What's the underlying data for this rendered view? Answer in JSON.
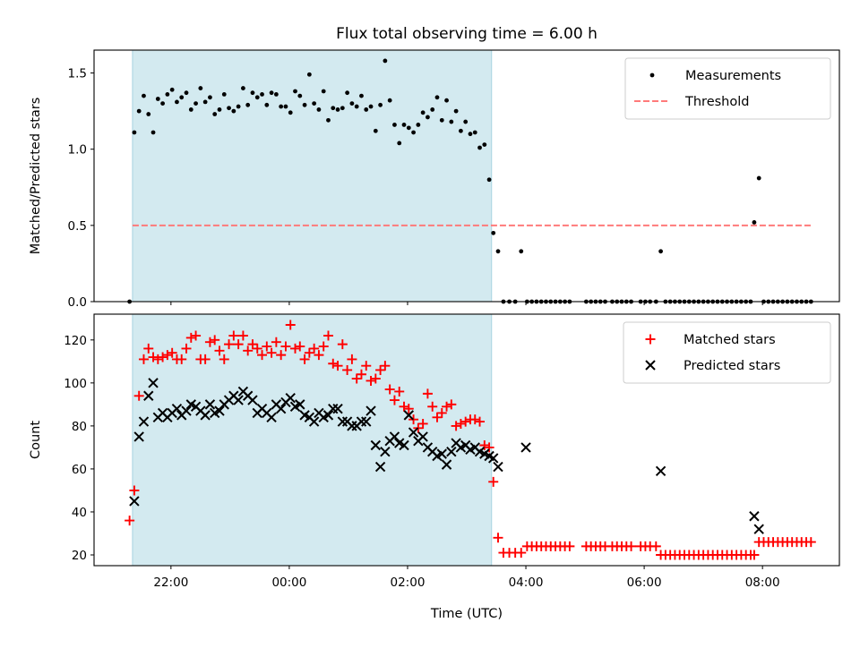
{
  "chart_data": {
    "title": "Flux total observing time = 6.00 h",
    "xlabel": "Time (UTC)",
    "x_unit": "hours since 00:00 UTC",
    "xlim": [
      -3.3,
      9.3
    ],
    "x_ticks": [
      {
        "v": -2,
        "label": "22:00"
      },
      {
        "v": 0,
        "label": "00:00"
      },
      {
        "v": 2,
        "label": "02:00"
      },
      {
        "v": 4,
        "label": "04:00"
      },
      {
        "v": 6,
        "label": "06:00"
      },
      {
        "v": 8,
        "label": "08:00"
      }
    ],
    "observing_window": {
      "start": -2.65,
      "end": 3.42,
      "color": "#d3eaf0"
    },
    "panels": [
      {
        "type": "scatter",
        "ylabel": "Matched/Predicted stars",
        "ylim": [
          0,
          1.65
        ],
        "y_ticks": [
          {
            "v": 0,
            "label": "0.0"
          },
          {
            "v": 0.5,
            "label": "0.5"
          },
          {
            "v": 1.0,
            "label": "1.0"
          },
          {
            "v": 1.5,
            "label": "1.5"
          }
        ],
        "threshold": {
          "value": 0.5,
          "x_start": -2.65,
          "x_end": 8.85,
          "color": "#ff7a7a"
        },
        "legend": {
          "position": "top-right",
          "entries": [
            {
              "label": "Measurements",
              "marker": "dot",
              "color": "#000000"
            },
            {
              "label": "Threshold",
              "marker": "dashed-line",
              "color": "#ff7a7a"
            }
          ]
        },
        "series": [
          {
            "name": "Measurements",
            "color": "#000000",
            "x": [
              -2.7,
              -2.62,
              -2.54,
              -2.46,
              -2.38,
              -2.3,
              -2.22,
              -2.14,
              -2.06,
              -1.98,
              -1.9,
              -1.82,
              -1.74,
              -1.66,
              -1.58,
              -1.5,
              -1.42,
              -1.34,
              -1.26,
              -1.18,
              -1.1,
              -1.02,
              -0.94,
              -0.86,
              -0.78,
              -0.7,
              -0.62,
              -0.54,
              -0.46,
              -0.38,
              -0.3,
              -0.22,
              -0.14,
              -0.06,
              0.02,
              0.1,
              0.18,
              0.26,
              0.34,
              0.42,
              0.5,
              0.58,
              0.66,
              0.74,
              0.82,
              0.9,
              0.98,
              1.06,
              1.14,
              1.22,
              1.3,
              1.38,
              1.46,
              1.54,
              1.62,
              1.7,
              1.78,
              1.86,
              1.94,
              2.02,
              2.1,
              2.18,
              2.26,
              2.34,
              2.42,
              2.5,
              2.58,
              2.66,
              2.74,
              2.82,
              2.9,
              2.98,
              3.06,
              3.14,
              3.22,
              3.3,
              3.38,
              3.45,
              3.53,
              3.62,
              3.72,
              3.82,
              3.92,
              4.02,
              4.1,
              4.18,
              4.26,
              4.34,
              4.42,
              4.5,
              4.58,
              4.66,
              4.74,
              5.02,
              5.1,
              5.18,
              5.26,
              5.34,
              5.46,
              5.54,
              5.62,
              5.7,
              5.78,
              5.94,
              6.02,
              6.1,
              6.2,
              6.28,
              6.36,
              6.44,
              6.52,
              6.6,
              6.68,
              6.76,
              6.84,
              6.92,
              7.0,
              7.08,
              7.16,
              7.24,
              7.32,
              7.4,
              7.48,
              7.56,
              7.64,
              7.72,
              7.8,
              7.86,
              7.94,
              8.02,
              8.1,
              8.18,
              8.26,
              8.34,
              8.42,
              8.5,
              8.58,
              8.66,
              8.74,
              8.82
            ],
            "y": [
              0.0,
              1.11,
              1.25,
              1.35,
              1.23,
              1.11,
              1.33,
              1.3,
              1.36,
              1.39,
              1.31,
              1.34,
              1.37,
              1.26,
              1.3,
              1.4,
              1.31,
              1.34,
              1.23,
              1.26,
              1.36,
              1.27,
              1.25,
              1.28,
              1.4,
              1.29,
              1.37,
              1.34,
              1.36,
              1.29,
              1.37,
              1.36,
              1.28,
              1.28,
              1.24,
              1.38,
              1.35,
              1.29,
              1.49,
              1.3,
              1.26,
              1.38,
              1.19,
              1.27,
              1.26,
              1.27,
              1.37,
              1.3,
              1.28,
              1.35,
              1.26,
              1.28,
              1.12,
              1.29,
              1.58,
              1.32,
              1.16,
              1.04,
              1.16,
              1.14,
              1.11,
              1.16,
              1.24,
              1.21,
              1.26,
              1.34,
              1.19,
              1.32,
              1.18,
              1.25,
              1.12,
              1.18,
              1.1,
              1.11,
              1.01,
              1.03,
              0.8,
              0.45,
              0.33,
              0.0,
              0.0,
              0.0,
              0.33,
              0.0,
              0.0,
              0.0,
              0.0,
              0.0,
              0.0,
              0.0,
              0.0,
              0.0,
              0.0,
              0.0,
              0.0,
              0.0,
              0.0,
              0.0,
              0.0,
              0.0,
              0.0,
              0.0,
              0.0,
              0.0,
              0.0,
              0.0,
              0.0,
              0.33,
              0.0,
              0.0,
              0.0,
              0.0,
              0.0,
              0.0,
              0.0,
              0.0,
              0.0,
              0.0,
              0.0,
              0.0,
              0.0,
              0.0,
              0.0,
              0.0,
              0.0,
              0.0,
              0.0,
              0.52,
              0.81,
              0.0,
              0.0,
              0.0,
              0.0,
              0.0,
              0.0,
              0.0,
              0.0,
              0.0,
              0.0,
              0.0
            ]
          }
        ]
      },
      {
        "type": "scatter",
        "ylabel": "Count",
        "ylim": [
          15,
          132
        ],
        "y_ticks": [
          {
            "v": 20,
            "label": "20"
          },
          {
            "v": 40,
            "label": "40"
          },
          {
            "v": 60,
            "label": "60"
          },
          {
            "v": 80,
            "label": "80"
          },
          {
            "v": 100,
            "label": "100"
          },
          {
            "v": 120,
            "label": "120"
          }
        ],
        "legend": {
          "position": "top-right",
          "entries": [
            {
              "label": "Matched stars",
              "marker": "plus",
              "color": "#ff0000"
            },
            {
              "label": "Predicted stars",
              "marker": "x",
              "color": "#000000"
            }
          ]
        },
        "series": [
          {
            "name": "Matched stars",
            "color": "#ff0000",
            "marker": "plus",
            "x": [
              -2.7,
              -2.62,
              -2.54,
              -2.46,
              -2.38,
              -2.3,
              -2.22,
              -2.14,
              -2.06,
              -1.98,
              -1.9,
              -1.82,
              -1.74,
              -1.66,
              -1.58,
              -1.5,
              -1.42,
              -1.34,
              -1.26,
              -1.18,
              -1.1,
              -1.02,
              -0.94,
              -0.86,
              -0.78,
              -0.7,
              -0.62,
              -0.54,
              -0.46,
              -0.38,
              -0.3,
              -0.22,
              -0.14,
              -0.06,
              0.02,
              0.1,
              0.18,
              0.26,
              0.34,
              0.42,
              0.5,
              0.58,
              0.66,
              0.74,
              0.82,
              0.9,
              0.98,
              1.06,
              1.14,
              1.22,
              1.3,
              1.38,
              1.46,
              1.54,
              1.62,
              1.7,
              1.78,
              1.86,
              1.94,
              2.02,
              2.1,
              2.18,
              2.26,
              2.34,
              2.42,
              2.5,
              2.58,
              2.66,
              2.74,
              2.82,
              2.9,
              2.98,
              3.06,
              3.14,
              3.22,
              3.3,
              3.38,
              3.45,
              3.53,
              3.62,
              3.72,
              3.82,
              3.92,
              4.02,
              4.1,
              4.18,
              4.26,
              4.34,
              4.42,
              4.5,
              4.58,
              4.66,
              4.74,
              5.02,
              5.1,
              5.18,
              5.26,
              5.34,
              5.46,
              5.54,
              5.62,
              5.7,
              5.78,
              5.94,
              6.02,
              6.1,
              6.2,
              6.28,
              6.36,
              6.44,
              6.52,
              6.6,
              6.68,
              6.76,
              6.84,
              6.92,
              7.0,
              7.08,
              7.16,
              7.24,
              7.32,
              7.4,
              7.48,
              7.56,
              7.64,
              7.72,
              7.8,
              7.86,
              7.94,
              8.02,
              8.1,
              8.18,
              8.26,
              8.34,
              8.42,
              8.5,
              8.58,
              8.66,
              8.74,
              8.82
            ],
            "y": [
              36,
              50,
              94,
              111,
              116,
              112,
              111,
              112,
              113,
              114,
              111,
              111,
              116,
              121,
              122,
              111,
              111,
              119,
              120,
              115,
              111,
              118,
              122,
              118,
              122,
              115,
              118,
              116,
              113,
              117,
              114,
              119,
              113,
              117,
              127,
              116,
              117,
              111,
              114,
              116,
              113,
              117,
              122,
              109,
              108,
              118,
              106,
              111,
              102,
              104,
              108,
              101,
              102,
              106,
              108,
              97,
              92,
              96,
              89,
              88,
              83,
              79,
              81,
              95,
              89,
              84,
              86,
              89,
              90,
              80,
              81,
              82,
              83,
              83,
              82,
              71,
              70,
              54,
              28,
              21,
              21,
              21,
              21,
              24,
              24,
              24,
              24,
              24,
              24,
              24,
              24,
              24,
              24,
              24,
              24,
              24,
              24,
              24,
              24,
              24,
              24,
              24,
              24,
              24,
              24,
              24,
              24,
              20,
              20,
              20,
              20,
              20,
              20,
              20,
              20,
              20,
              20,
              20,
              20,
              20,
              20,
              20,
              20,
              20,
              20,
              20,
              20,
              20,
              26,
              26,
              26,
              26,
              26,
              26,
              26,
              26,
              26,
              26,
              26,
              26
            ]
          },
          {
            "name": "Predicted stars",
            "color": "#000000",
            "marker": "x",
            "x": [
              -2.62,
              -2.54,
              -2.46,
              -2.38,
              -2.3,
              -2.22,
              -2.14,
              -2.06,
              -1.98,
              -1.9,
              -1.82,
              -1.74,
              -1.66,
              -1.58,
              -1.5,
              -1.42,
              -1.34,
              -1.26,
              -1.18,
              -1.1,
              -1.02,
              -0.94,
              -0.86,
              -0.78,
              -0.7,
              -0.62,
              -0.54,
              -0.46,
              -0.38,
              -0.3,
              -0.22,
              -0.14,
              -0.06,
              0.02,
              0.1,
              0.18,
              0.26,
              0.34,
              0.42,
              0.5,
              0.58,
              0.66,
              0.74,
              0.82,
              0.9,
              0.98,
              1.06,
              1.14,
              1.22,
              1.3,
              1.38,
              1.46,
              1.54,
              1.62,
              1.7,
              1.78,
              1.86,
              1.94,
              2.02,
              2.1,
              2.18,
              2.26,
              2.34,
              2.42,
              2.5,
              2.58,
              2.66,
              2.74,
              2.82,
              2.9,
              2.98,
              3.06,
              3.14,
              3.22,
              3.3,
              3.38,
              3.45,
              3.53,
              4.0,
              6.28,
              7.86,
              7.94
            ],
            "y": [
              45,
              75,
              82,
              94,
              100,
              84,
              86,
              84,
              86,
              88,
              85,
              87,
              90,
              89,
              87,
              85,
              90,
              86,
              87,
              90,
              92,
              94,
              92,
              96,
              94,
              92,
              86,
              88,
              86,
              84,
              90,
              88,
              91,
              93,
              89,
              90,
              85,
              84,
              82,
              86,
              84,
              85,
              88,
              88,
              82,
              82,
              80,
              80,
              82,
              82,
              87,
              71,
              61,
              68,
              73,
              75,
              72,
              71,
              85,
              77,
              73,
              75,
              70,
              68,
              66,
              67,
              62,
              68,
              72,
              70,
              71,
              69,
              70,
              68,
              67,
              66,
              65,
              61,
              70,
              59,
              38,
              32
            ]
          }
        ]
      }
    ]
  }
}
